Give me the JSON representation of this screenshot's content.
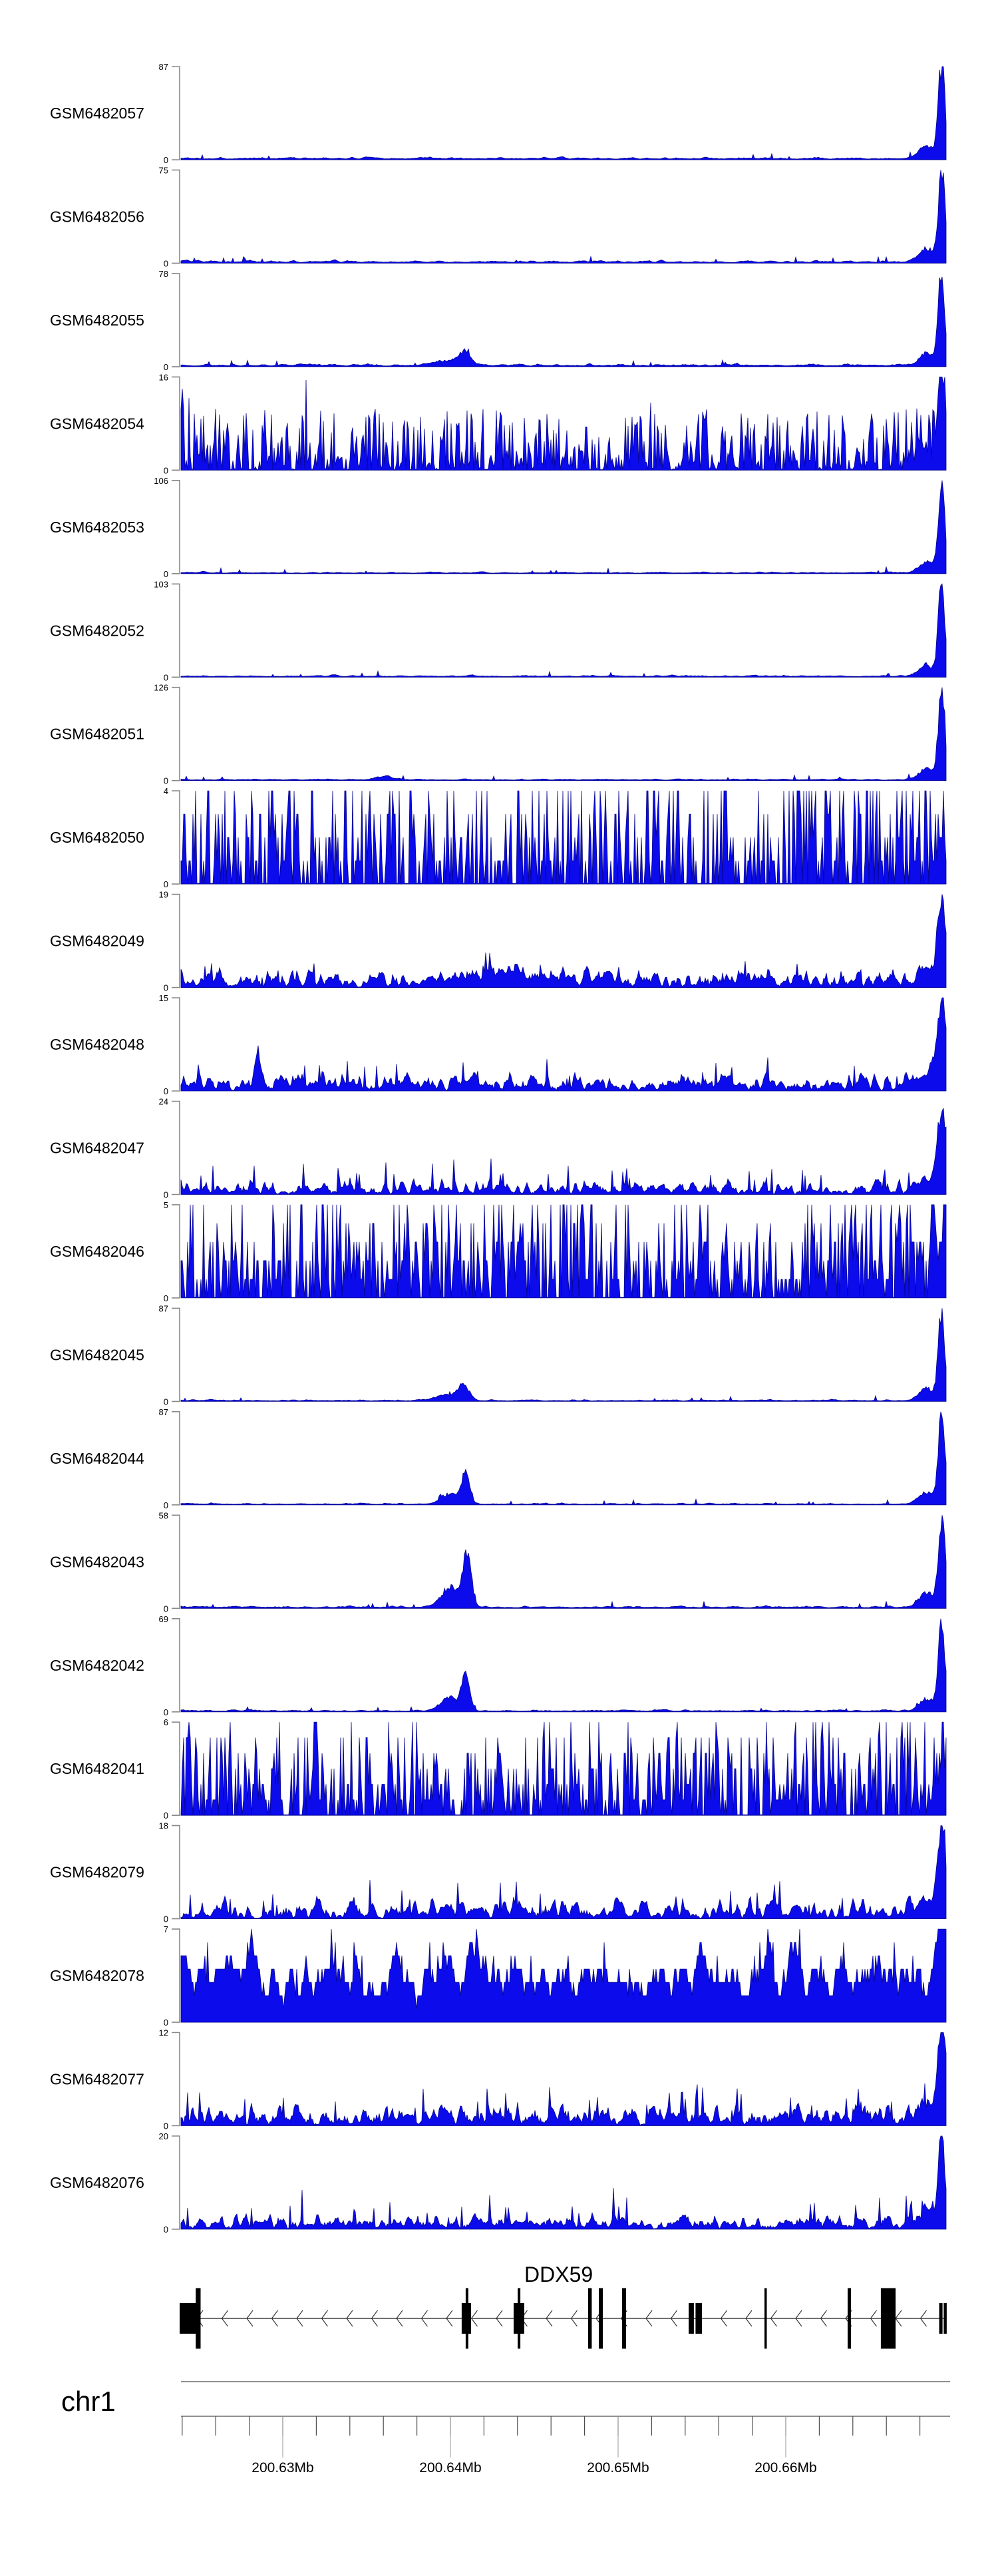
{
  "figure_title": "",
  "colors": {
    "signal": "#0b0bec",
    "signal_edge": "#05058c",
    "axis_line": "#4d4d4d",
    "major_tick": "#9a9a9a",
    "bracket": "#8a8a8a",
    "gene": "#000000",
    "text": "#000000",
    "background": "#ffffff"
  },
  "chart_data": {
    "type": "area",
    "description": "Genome browser coverage tracks (read pile-up signal) over the DDX59 locus",
    "legend_position": "left-track-labels",
    "grid": false,
    "axis": {
      "chromosome": "chr1",
      "major_ticks_mb": [
        200.63,
        200.64,
        200.65,
        200.66
      ],
      "labels": [
        "200.63Mb",
        "200.64Mb",
        "200.65Mb",
        "200.66Mb"
      ],
      "minor_first_mb": 200.624,
      "minor_step_mb": 0.002,
      "minor_count": 23,
      "window_mb": [
        200.6239,
        200.6696
      ]
    },
    "gene": {
      "name": "DDX59",
      "strand": "-",
      "span_mb": [
        200.62385,
        200.6696
      ],
      "exons": [
        {
          "s": 200.62385,
          "e": 200.62491,
          "k": "half"
        },
        {
          "s": 200.62481,
          "e": 200.6251,
          "k": "full"
        },
        {
          "s": 200.64067,
          "e": 200.64123,
          "k": "half"
        },
        {
          "s": 200.64091,
          "e": 200.64107,
          "k": "full"
        },
        {
          "s": 200.64377,
          "e": 200.6444,
          "k": "half"
        },
        {
          "s": 200.64401,
          "e": 200.64417,
          "k": "full"
        },
        {
          "s": 200.64821,
          "e": 200.64843,
          "k": "full"
        },
        {
          "s": 200.64885,
          "e": 200.64909,
          "k": "full"
        },
        {
          "s": 200.65024,
          "e": 200.65048,
          "k": "full"
        },
        {
          "s": 200.65421,
          "e": 200.65452,
          "k": "half"
        },
        {
          "s": 200.65462,
          "e": 200.655,
          "k": "half"
        },
        {
          "s": 200.65873,
          "e": 200.65887,
          "k": "full"
        },
        {
          "s": 200.66369,
          "e": 200.66389,
          "k": "full"
        },
        {
          "s": 200.66567,
          "e": 200.66655,
          "k": "full"
        },
        {
          "s": 200.66915,
          "e": 200.66935,
          "k": "half"
        },
        {
          "s": 200.66942,
          "e": 200.6696,
          "k": "half"
        }
      ]
    },
    "tracks": [
      {
        "label": "GSM6482057",
        "ylim": [
          0,
          87
        ],
        "style": "flat",
        "amp": 0.028,
        "seed": 101,
        "spike_prob": 0.02,
        "spike_amp": 0.06,
        "quant": false,
        "peaks": [
          {
            "mb": 200.6693,
            "h": 0.97,
            "s": 5
          },
          {
            "mb": 200.6684,
            "h": 0.13,
            "s": 11
          }
        ]
      },
      {
        "label": "GSM6482056",
        "ylim": [
          0,
          75
        ],
        "style": "flat",
        "amp": 0.03,
        "seed": 102,
        "spike_prob": 0.02,
        "spike_amp": 0.06,
        "quant": false,
        "peaks": [
          {
            "mb": 200.6693,
            "h": 0.97,
            "s": 5
          },
          {
            "mb": 200.6684,
            "h": 0.14,
            "s": 11
          }
        ]
      },
      {
        "label": "GSM6482055",
        "ylim": [
          0,
          78
        ],
        "style": "flat",
        "amp": 0.03,
        "seed": 103,
        "spike_prob": 0.02,
        "spike_amp": 0.06,
        "quant": false,
        "peaks": [
          {
            "mb": 200.6408,
            "h": 0.15,
            "s": 9
          },
          {
            "mb": 200.6396,
            "h": 0.05,
            "s": 15
          },
          {
            "mb": 200.6693,
            "h": 0.96,
            "s": 5
          },
          {
            "mb": 200.6684,
            "h": 0.13,
            "s": 11
          }
        ]
      },
      {
        "label": "GSM6482054",
        "ylim": [
          0,
          16
        ],
        "style": "spiky",
        "amp": 0.3,
        "seed": 104,
        "spike_prob": 0.04,
        "spike_amp": 0.4,
        "quant": false,
        "peaks": [
          {
            "mb": 200.6693,
            "h": 0.95,
            "s": 6
          },
          {
            "mb": 200.6682,
            "h": 0.2,
            "s": 12
          }
        ]
      },
      {
        "label": "GSM6482053",
        "ylim": [
          0,
          106
        ],
        "style": "flat",
        "amp": 0.018,
        "seed": 105,
        "spike_prob": 0.015,
        "spike_amp": 0.05,
        "quant": false,
        "peaks": [
          {
            "mb": 200.6693,
            "h": 0.95,
            "s": 5
          },
          {
            "mb": 200.6684,
            "h": 0.12,
            "s": 11
          }
        ]
      },
      {
        "label": "GSM6482052",
        "ylim": [
          0,
          103
        ],
        "style": "flat",
        "amp": 0.02,
        "seed": 106,
        "spike_prob": 0.015,
        "spike_amp": 0.05,
        "quant": false,
        "peaks": [
          {
            "mb": 200.6693,
            "h": 0.96,
            "s": 5
          },
          {
            "mb": 200.6684,
            "h": 0.12,
            "s": 11
          }
        ]
      },
      {
        "label": "GSM6482051",
        "ylim": [
          0,
          126
        ],
        "style": "flat",
        "amp": 0.018,
        "seed": 107,
        "spike_prob": 0.02,
        "spike_amp": 0.05,
        "quant": false,
        "peaks": [
          {
            "mb": 200.636,
            "h": 0.04,
            "s": 12
          },
          {
            "mb": 200.6693,
            "h": 0.97,
            "s": 5
          },
          {
            "mb": 200.6684,
            "h": 0.12,
            "s": 11
          }
        ]
      },
      {
        "label": "GSM6482050",
        "ylim": [
          0,
          4
        ],
        "style": "spiky",
        "amp": 0.55,
        "seed": 108,
        "spike_prob": 0.1,
        "spike_amp": 0.4,
        "quant": true,
        "peaks": [
          {
            "mb": 200.6693,
            "h": 0.5,
            "s": 8
          }
        ]
      },
      {
        "label": "GSM6482049",
        "ylim": [
          0,
          19
        ],
        "style": "bumpy",
        "amp": 0.13,
        "seed": 109,
        "spike_prob": 0.03,
        "spike_amp": 0.22,
        "quant": false,
        "peaks": [
          {
            "mb": 200.643,
            "h": 0.1,
            "s": 60
          },
          {
            "mb": 200.6693,
            "h": 0.92,
            "s": 6
          },
          {
            "mb": 200.6684,
            "h": 0.15,
            "s": 12
          }
        ]
      },
      {
        "label": "GSM6482048",
        "ylim": [
          0,
          15
        ],
        "style": "bumpy",
        "amp": 0.13,
        "seed": 110,
        "spike_prob": 0.04,
        "spike_amp": 0.25,
        "quant": false,
        "peaks": [
          {
            "mb": 200.6285,
            "h": 0.42,
            "s": 4
          },
          {
            "mb": 200.6693,
            "h": 0.92,
            "s": 6
          },
          {
            "mb": 200.6684,
            "h": 0.15,
            "s": 12
          }
        ]
      },
      {
        "label": "GSM6482047",
        "ylim": [
          0,
          24
        ],
        "style": "bumpy",
        "amp": 0.1,
        "seed": 111,
        "spike_prob": 0.05,
        "spike_amp": 0.3,
        "quant": false,
        "peaks": [
          {
            "mb": 200.6693,
            "h": 0.9,
            "s": 6
          },
          {
            "mb": 200.6684,
            "h": 0.14,
            "s": 12
          }
        ]
      },
      {
        "label": "GSM6482046",
        "ylim": [
          0,
          5
        ],
        "style": "spiky",
        "amp": 0.5,
        "seed": 112,
        "spike_prob": 0.12,
        "spike_amp": 0.5,
        "quant": true,
        "peaks": [
          {
            "mb": 200.6693,
            "h": 0.6,
            "s": 9
          }
        ]
      },
      {
        "label": "GSM6482045",
        "ylim": [
          0,
          87
        ],
        "style": "flat",
        "amp": 0.02,
        "seed": 113,
        "spike_prob": 0.015,
        "spike_amp": 0.05,
        "quant": false,
        "peaks": [
          {
            "mb": 200.6408,
            "h": 0.16,
            "s": 8
          },
          {
            "mb": 200.6398,
            "h": 0.06,
            "s": 16
          },
          {
            "mb": 200.6693,
            "h": 0.95,
            "s": 5
          },
          {
            "mb": 200.6684,
            "h": 0.13,
            "s": 11
          }
        ]
      },
      {
        "label": "GSM6482044",
        "ylim": [
          0,
          87
        ],
        "style": "flat",
        "amp": 0.02,
        "seed": 114,
        "spike_prob": 0.015,
        "spike_amp": 0.05,
        "quant": false,
        "peaks": [
          {
            "mb": 200.6409,
            "h": 0.3,
            "s": 6
          },
          {
            "mb": 200.64,
            "h": 0.11,
            "s": 13
          },
          {
            "mb": 200.6693,
            "h": 0.95,
            "s": 5
          },
          {
            "mb": 200.6684,
            "h": 0.13,
            "s": 11
          }
        ]
      },
      {
        "label": "GSM6482043",
        "ylim": [
          0,
          58
        ],
        "style": "flat",
        "amp": 0.025,
        "seed": 115,
        "spike_prob": 0.02,
        "spike_amp": 0.06,
        "quant": false,
        "peaks": [
          {
            "mb": 200.641,
            "h": 0.58,
            "s": 6
          },
          {
            "mb": 200.64,
            "h": 0.22,
            "s": 13
          },
          {
            "mb": 200.6693,
            "h": 0.97,
            "s": 5
          },
          {
            "mb": 200.6684,
            "h": 0.15,
            "s": 11
          }
        ]
      },
      {
        "label": "GSM6482042",
        "ylim": [
          0,
          69
        ],
        "style": "flat",
        "amp": 0.022,
        "seed": 116,
        "spike_prob": 0.02,
        "spike_amp": 0.05,
        "quant": false,
        "peaks": [
          {
            "mb": 200.6409,
            "h": 0.4,
            "s": 6
          },
          {
            "mb": 200.6399,
            "h": 0.14,
            "s": 13
          },
          {
            "mb": 200.6693,
            "h": 0.95,
            "s": 5
          },
          {
            "mb": 200.6684,
            "h": 0.13,
            "s": 11
          }
        ]
      },
      {
        "label": "GSM6482041",
        "ylim": [
          0,
          6
        ],
        "style": "spiky",
        "amp": 0.45,
        "seed": 117,
        "spike_prob": 0.1,
        "spike_amp": 0.45,
        "quant": true,
        "peaks": [
          {
            "mb": 200.632,
            "h": 0.92,
            "s": 2.5
          },
          {
            "mb": 200.6693,
            "h": 0.5,
            "s": 8
          }
        ]
      },
      {
        "label": "GSM6482079",
        "ylim": [
          0,
          18
        ],
        "style": "bumpy",
        "amp": 0.14,
        "seed": 118,
        "spike_prob": 0.04,
        "spike_amp": 0.3,
        "quant": false,
        "peaks": [
          {
            "mb": 200.6693,
            "h": 0.95,
            "s": 6
          },
          {
            "mb": 200.6684,
            "h": 0.14,
            "s": 12
          }
        ]
      },
      {
        "label": "GSM6482078",
        "ylim": [
          0,
          7
        ],
        "style": "rolling",
        "amp": 0.45,
        "seed": 119,
        "spike_prob": 0.06,
        "spike_amp": 0.4,
        "quant": true,
        "peaks": [
          {
            "mb": 200.6693,
            "h": 0.72,
            "s": 10
          }
        ]
      },
      {
        "label": "GSM6482077",
        "ylim": [
          0,
          12
        ],
        "style": "bumpy",
        "amp": 0.16,
        "seed": 120,
        "spike_prob": 0.05,
        "spike_amp": 0.3,
        "quant": false,
        "peaks": [
          {
            "mb": 200.6693,
            "h": 0.95,
            "s": 6
          },
          {
            "mb": 200.6684,
            "h": 0.15,
            "s": 12
          }
        ]
      },
      {
        "label": "GSM6482076",
        "ylim": [
          0,
          20
        ],
        "style": "bumpy",
        "amp": 0.11,
        "seed": 121,
        "spike_prob": 0.04,
        "spike_amp": 0.3,
        "quant": false,
        "peaks": [
          {
            "mb": 200.6693,
            "h": 0.9,
            "s": 5
          },
          {
            "mb": 200.6684,
            "h": 0.14,
            "s": 11
          }
        ]
      }
    ]
  }
}
